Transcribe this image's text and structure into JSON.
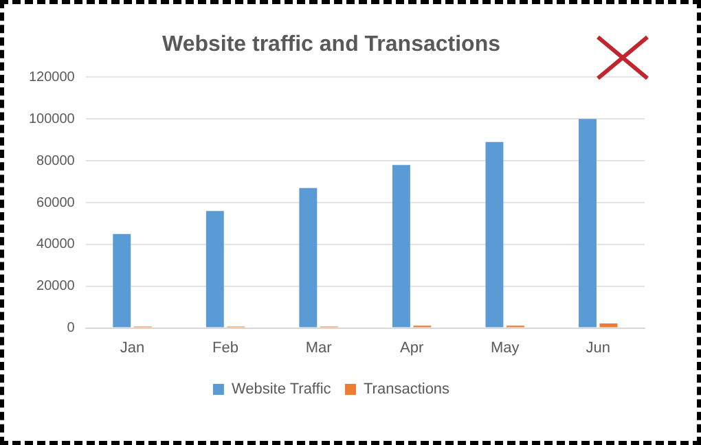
{
  "chart_data": {
    "type": "bar",
    "title": "Website traffic and Transactions",
    "categories": [
      "Jan",
      "Feb",
      "Mar",
      "Apr",
      "May",
      "Jun"
    ],
    "series": [
      {
        "name": "Website Traffic",
        "color": "#5b9bd5",
        "values": [
          45000,
          56000,
          67000,
          78000,
          89000,
          100000
        ]
      },
      {
        "name": "Transactions",
        "color": "#ed7d31",
        "values": [
          700,
          700,
          700,
          1100,
          1100,
          2200
        ]
      }
    ],
    "ylim": [
      0,
      120000
    ],
    "yticks": [
      0,
      20000,
      40000,
      60000,
      80000,
      100000,
      120000
    ],
    "grid": "y",
    "legend": "bottom"
  }
}
